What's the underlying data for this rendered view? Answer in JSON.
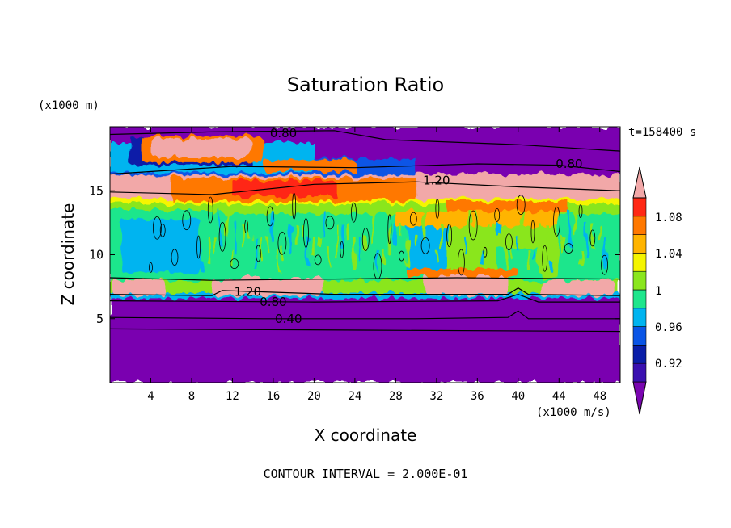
{
  "chart_data": {
    "type": "heatmap",
    "title": "Saturation Ratio",
    "xlabel": "X coordinate",
    "ylabel": "Z coordinate",
    "x_unit": "(x1000 m/s)",
    "y_unit": "(x1000 m)",
    "time_label": "t=158400 s",
    "footer": "CONTOUR INTERVAL = 2.000E-01",
    "xlim": [
      0,
      50
    ],
    "ylim": [
      0,
      20
    ],
    "x_ticks": [
      4,
      8,
      12,
      16,
      20,
      24,
      28,
      32,
      36,
      40,
      44,
      48
    ],
    "y_ticks": [
      5,
      10,
      15
    ],
    "colorbar": {
      "levels": [
        0.92,
        0.94,
        0.96,
        0.98,
        1,
        1.02,
        1.04,
        1.06,
        1.08,
        1.1
      ],
      "tick_labels": [
        "1.08",
        "1.04",
        "1",
        "0.96",
        "0.92"
      ],
      "colors": [
        "#7a06b0",
        "#3a10b0",
        "#0a1ea8",
        "#0a55e6",
        "#00b4f0",
        "#1ee68c",
        "#8ae61e",
        "#f5f500",
        "#ffb400",
        "#ff7800",
        "#ff2814",
        "#f2a8a8"
      ]
    },
    "contour_labels": [
      {
        "text": "0.80",
        "x": 17,
        "z": 19.5
      },
      {
        "text": "0.80",
        "x": 45,
        "z": 17.1
      },
      {
        "text": "1.20",
        "x": 32,
        "z": 15.8
      },
      {
        "text": "1.20",
        "x": 13.5,
        "z": 7.1
      },
      {
        "text": "0.80",
        "x": 16,
        "z": 6.3
      },
      {
        "text": "0.40",
        "x": 17.5,
        "z": 5.0
      }
    ],
    "regions": [
      {
        "value": 1.0,
        "z": [
          8,
          14
        ]
      },
      {
        "value": 1.12,
        "z": [
          14,
          16.3
        ]
      },
      {
        "value": 1.12,
        "z": [
          6.9,
          8
        ]
      },
      {
        "value": 0.9,
        "z": [
          0,
          6.5
        ]
      },
      {
        "value": 0.9,
        "z": [
          16.5,
          20
        ]
      }
    ]
  }
}
